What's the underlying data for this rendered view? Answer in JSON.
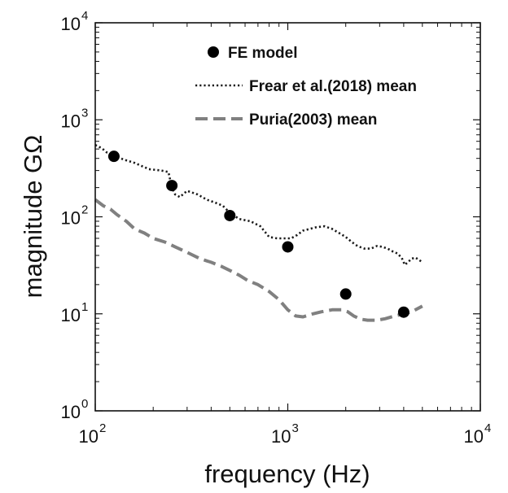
{
  "chart_data": {
    "type": "line",
    "title": "",
    "xlabel": "frequency (Hz)",
    "ylabel": "magnitude GΩ",
    "xscale": "log",
    "yscale": "log",
    "xlim": [
      100,
      10000
    ],
    "ylim": [
      1,
      10000
    ],
    "x_ticks": [
      {
        "value": 100,
        "base": "10",
        "exp": "2"
      },
      {
        "value": 1000,
        "base": "10",
        "exp": "3"
      },
      {
        "value": 10000,
        "base": "10",
        "exp": "4"
      }
    ],
    "y_ticks": [
      {
        "value": 1,
        "base": "10",
        "exp": "0"
      },
      {
        "value": 10,
        "base": "10",
        "exp": "1"
      },
      {
        "value": 100,
        "base": "10",
        "exp": "2"
      },
      {
        "value": 1000,
        "base": "10",
        "exp": "3"
      },
      {
        "value": 10000,
        "base": "10",
        "exp": "4"
      }
    ],
    "legend_position": "top",
    "series": [
      {
        "name": "FE model",
        "style": "markers",
        "color": "#000000",
        "x": [
          125,
          250,
          500,
          1000,
          2000,
          4000
        ],
        "y": [
          420,
          210,
          103,
          49,
          16,
          10.4
        ]
      },
      {
        "name": "Frear et al.(2018) mean",
        "style": "dotted",
        "color": "#1a1a1a",
        "x": [
          100,
          108,
          115,
          125,
          140,
          160,
          190,
          220,
          240,
          250,
          260,
          275,
          300,
          340,
          380,
          420,
          460,
          500,
          560,
          640,
          720,
          800,
          880,
          960,
          1040,
          1120,
          1200,
          1300,
          1400,
          1550,
          1700,
          1850,
          2000,
          2150,
          2300,
          2500,
          2700,
          2900,
          3100,
          3300,
          3500,
          3700,
          3900,
          4050,
          4200,
          4400,
          4600,
          4800,
          5000
        ],
        "y": [
          550,
          510,
          460,
          430,
          390,
          360,
          310,
          300,
          290,
          200,
          170,
          160,
          185,
          170,
          150,
          140,
          130,
          110,
          95,
          90,
          80,
          62,
          60,
          60,
          60,
          65,
          72,
          75,
          78,
          80,
          75,
          68,
          62,
          55,
          50,
          47,
          47,
          50,
          49,
          47,
          44,
          42,
          38,
          32,
          34,
          37,
          38,
          36,
          34
        ]
      },
      {
        "name": "Puria(2003) mean",
        "style": "dashed",
        "color": "#808080",
        "x": [
          100,
          110,
          120,
          130,
          145,
          160,
          180,
          200,
          230,
          260,
          300,
          350,
          400,
          450,
          500,
          560,
          620,
          700,
          800,
          900,
          1000,
          1100,
          1200,
          1350,
          1500,
          1700,
          1900,
          2050,
          2200,
          2400,
          2600,
          2900,
          3200,
          3600,
          4000,
          4400,
          5000
        ],
        "y": [
          150,
          130,
          120,
          105,
          90,
          75,
          68,
          60,
          55,
          49,
          43,
          37,
          34,
          31,
          28,
          25,
          22,
          20,
          17,
          14,
          11,
          9.5,
          9.3,
          10,
          10.5,
          11,
          11,
          10.5,
          9.5,
          8.8,
          8.6,
          8.6,
          8.9,
          9.5,
          10,
          10.5,
          12
        ]
      }
    ]
  }
}
